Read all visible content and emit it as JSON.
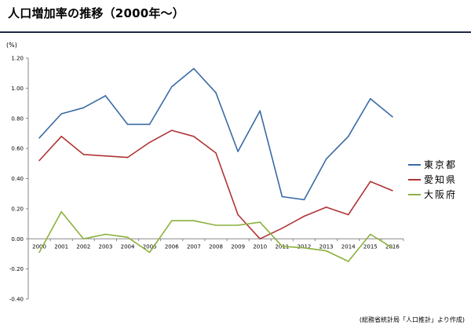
{
  "page": {
    "title": "人口増加率の推移（2000年〜）",
    "source": "(総務省統計局「人口推計」より作成)"
  },
  "chart_data": {
    "type": "line",
    "unit_label": "(%)",
    "categories": [
      "2000",
      "2001",
      "2002",
      "2003",
      "2004",
      "2005",
      "2006",
      "2007",
      "2008",
      "2009",
      "2010",
      "2011",
      "2012",
      "2013",
      "2014",
      "2015",
      "2016"
    ],
    "ylim": [
      -0.4,
      1.2
    ],
    "yticks": [
      "1.20",
      "1.00",
      "0.80",
      "0.60",
      "0.40",
      "0.20",
      "0.00",
      "-0.20",
      "-0.40"
    ],
    "grid": false,
    "legend_position": "right",
    "series": [
      {
        "name": "東京都",
        "color": "#3a6aa6",
        "values": [
          0.67,
          0.83,
          0.87,
          0.95,
          0.76,
          0.76,
          1.01,
          1.13,
          0.97,
          0.58,
          0.85,
          0.28,
          0.26,
          0.53,
          0.68,
          0.93,
          0.81
        ]
      },
      {
        "name": "愛知県",
        "color": "#b03434",
        "values": [
          0.52,
          0.68,
          0.56,
          0.55,
          0.54,
          0.64,
          0.72,
          0.68,
          0.57,
          0.16,
          0.0,
          0.07,
          0.15,
          0.21,
          0.16,
          0.38,
          0.32
        ]
      },
      {
        "name": "大阪府",
        "color": "#8bb13c",
        "values": [
          -0.09,
          0.18,
          0.0,
          0.03,
          0.01,
          -0.09,
          0.12,
          0.12,
          0.09,
          0.09,
          0.11,
          -0.05,
          -0.06,
          -0.08,
          -0.15,
          0.03,
          -0.06
        ]
      }
    ]
  }
}
